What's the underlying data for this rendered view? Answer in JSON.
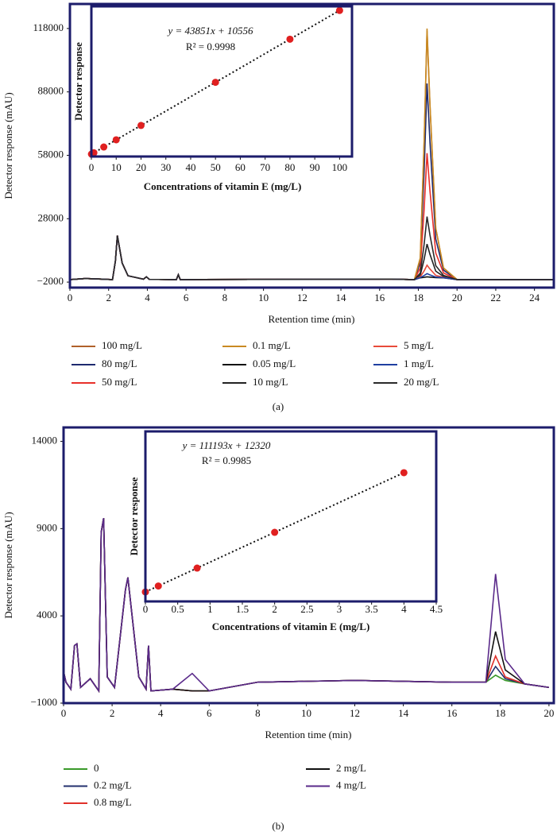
{
  "chart_data": [
    {
      "type": "line",
      "x_label": "Retention time (min)",
      "y_label": "Detector response (mAU)",
      "caption": "(a)",
      "xlim": [
        0,
        25
      ],
      "xticks": [
        0,
        2,
        4,
        6,
        8,
        10,
        12,
        14,
        16,
        18,
        20,
        22,
        24
      ],
      "ylim": [
        -4600,
        129600
      ],
      "yticks": [
        {
          "value": -2000,
          "label": "−2000"
        },
        28000,
        58000,
        88000,
        118000
      ],
      "x": [
        0,
        0.8,
        2.2,
        2.35,
        2.45,
        2.7,
        3.0,
        3.8,
        3.95,
        4.1,
        5.5,
        5.6,
        5.7,
        16.6,
        17.8,
        18.1,
        18.3,
        18.45,
        18.6,
        18.9,
        19.3,
        20,
        25
      ],
      "series": [
        {
          "name": "100 mg/L",
          "color": "#b0602a",
          "values": [
            -800,
            -300,
            -800,
            8000,
            20000,
            7000,
            1000,
            -600,
            500,
            -700,
            -800,
            1500,
            -800,
            -600,
            -800,
            9360,
            64350,
            117000,
            81900,
            23400,
            4680,
            -800,
            -800
          ]
        },
        {
          "name": "80 mg/L",
          "color": "#1e2a6e",
          "values": [
            -800,
            -300,
            -800,
            8000,
            20000,
            7000,
            1000,
            -600,
            500,
            -700,
            -800,
            1500,
            -800,
            -600,
            -800,
            7360,
            50600,
            92000,
            64400,
            18400,
            3680,
            -800,
            -800
          ]
        },
        {
          "name": "50 mg/L",
          "color": "#e8302a",
          "values": [
            -800,
            -300,
            -800,
            8000,
            20000,
            7000,
            1000,
            -600,
            500,
            -700,
            -800,
            1500,
            -800,
            -600,
            -800,
            4720,
            32450,
            59000,
            41300,
            11800,
            2360,
            -800,
            -800
          ]
        },
        {
          "name": "0.1 mg/L",
          "color": "#c98a22",
          "values": [
            -800,
            -300,
            -800,
            8000,
            20000,
            7000,
            1000,
            -600,
            500,
            -700,
            -800,
            1500,
            -800,
            -600,
            -800,
            9440,
            64900,
            118000,
            82600,
            23600,
            4720,
            -800,
            -800
          ]
        },
        {
          "name": "0.05 mg/L",
          "color": "#111111",
          "values": [
            -800,
            -300,
            -800,
            8000,
            20000,
            7000,
            1000,
            -600,
            500,
            -700,
            -800,
            1500,
            -800,
            -600,
            -800,
            40,
            275,
            500,
            350,
            100,
            20,
            -800,
            -800
          ]
        },
        {
          "name": "10 mg/L",
          "color": "#222222",
          "values": [
            -800,
            -300,
            -800,
            8000,
            20000,
            7000,
            1000,
            -600,
            500,
            -700,
            -800,
            1500,
            -800,
            -600,
            -800,
            1280,
            8800,
            16000,
            11200,
            3200,
            640,
            -800,
            -800
          ]
        },
        {
          "name": "5 mg/L",
          "color": "#e84a3a",
          "values": [
            -800,
            -300,
            -800,
            8000,
            20000,
            7000,
            1000,
            -600,
            500,
            -700,
            -800,
            1500,
            -800,
            -600,
            -800,
            480,
            3300,
            6000,
            4200,
            1200,
            240,
            -800,
            -800
          ]
        },
        {
          "name": "1 mg/L",
          "color": "#1f3fa0",
          "values": [
            -800,
            -300,
            -800,
            8000,
            20000,
            7000,
            1000,
            -600,
            500,
            -700,
            -800,
            1500,
            -800,
            -600,
            -800,
            160,
            1100,
            2000,
            1400,
            400,
            80,
            -800,
            -800
          ]
        },
        {
          "name": "20 mg/L",
          "color": "#2a2a2a",
          "values": [
            -800,
            -300,
            -800,
            8000,
            20000,
            7000,
            1000,
            -600,
            500,
            -700,
            -800,
            1500,
            -800,
            -600,
            -800,
            2320,
            15950,
            29000,
            20300,
            5800,
            1160,
            -800,
            -800
          ]
        }
      ]
    },
    {
      "type": "scatter",
      "x_label": "Concentrations of vitamin E (mg/L)",
      "y_label": "Detector response",
      "equation": "y = 43851x + 10556",
      "r2": "R² = 0.9998",
      "color": "#e02020",
      "xlim": [
        0,
        105
      ],
      "xticks": [
        0,
        10,
        20,
        30,
        40,
        50,
        60,
        70,
        80,
        90,
        100
      ],
      "ylim": [
        -60000,
        4520000
      ],
      "x": [
        0.05,
        0.1,
        1,
        5,
        10,
        20,
        50,
        80,
        100
      ],
      "values": [
        12749,
        14941,
        54407,
        229811,
        449066,
        887576,
        2203106,
        3518636,
        4395656
      ]
    },
    {
      "type": "line",
      "x_label": "Retention time (min)",
      "y_label": "Detector response (mAU)",
      "caption": "(b)",
      "xlim": [
        0,
        20.2
      ],
      "xticks": [
        0,
        2,
        4,
        6,
        8,
        10,
        12,
        14,
        16,
        18,
        20
      ],
      "ylim": [
        -1000,
        14800
      ],
      "yticks": [
        {
          "value": -1000,
          "label": "−1000"
        },
        4000,
        9000,
        14000
      ],
      "x": [
        0,
        0.1,
        0.3,
        0.45,
        0.55,
        0.7,
        1.1,
        1.45,
        1.55,
        1.65,
        1.8,
        2.1,
        2.55,
        2.65,
        2.8,
        3.1,
        3.4,
        3.5,
        3.6,
        4.5,
        5.3,
        6,
        8,
        12,
        16,
        17.4,
        17.8,
        18.2,
        19,
        20
      ],
      "series": [
        {
          "name": "0",
          "color": "#3a9a2a",
          "values": [
            800,
            200,
            -200,
            2300,
            2400,
            -100,
            400,
            -300,
            8800,
            9600,
            500,
            -100,
            5500,
            6200,
            4300,
            500,
            -200,
            2300,
            -300,
            -200,
            -300,
            -300,
            200,
            300,
            200,
            200,
            600,
            300,
            100,
            -100
          ]
        },
        {
          "name": "0.2 mg/L",
          "color": "#23306e",
          "values": [
            800,
            200,
            -200,
            2300,
            2400,
            -100,
            400,
            -300,
            8800,
            9600,
            500,
            -100,
            5500,
            6200,
            4300,
            500,
            -200,
            2300,
            -300,
            -200,
            -300,
            -300,
            200,
            300,
            200,
            200,
            1100,
            400,
            100,
            -100
          ]
        },
        {
          "name": "0.8 mg/L",
          "color": "#e0302a",
          "values": [
            800,
            200,
            -200,
            2300,
            2400,
            -100,
            400,
            -300,
            8800,
            9600,
            500,
            -100,
            5500,
            6200,
            4300,
            500,
            -200,
            2300,
            -300,
            -200,
            -300,
            -300,
            200,
            300,
            200,
            200,
            1700,
            500,
            100,
            -100
          ]
        },
        {
          "name": "2 mg/L",
          "color": "#111111",
          "values": [
            800,
            200,
            -200,
            2300,
            2400,
            -100,
            400,
            -300,
            8800,
            9600,
            500,
            -100,
            5500,
            6200,
            4300,
            500,
            -200,
            2300,
            -300,
            -200,
            -300,
            -300,
            200,
            300,
            200,
            200,
            3100,
            900,
            100,
            -100
          ]
        },
        {
          "name": "4 mg/L",
          "color": "#5a2a8a",
          "values": [
            800,
            200,
            -200,
            2300,
            2400,
            -100,
            400,
            -300,
            8800,
            9600,
            500,
            -100,
            5500,
            6200,
            4300,
            500,
            -200,
            2300,
            -300,
            -200,
            700,
            -300,
            200,
            300,
            200,
            200,
            6400,
            1500,
            100,
            -100
          ]
        }
      ]
    },
    {
      "type": "scatter",
      "x_label": "Concentrations of vitamin E (mg/L)",
      "y_label": "Detector response",
      "equation": "y = 111193x + 12320",
      "r2": "R² = 0.9985",
      "color": "#e02020",
      "xlim": [
        0,
        4.5
      ],
      "xticks": [
        0,
        0.5,
        1,
        1.5,
        2,
        2.5,
        3,
        3.5,
        4,
        4.5
      ],
      "ylim": [
        -23000,
        611000
      ],
      "x": [
        0,
        0.2,
        0.8,
        2,
        4
      ],
      "values": [
        12320,
        34559,
        101274,
        234706,
        457092
      ]
    }
  ]
}
